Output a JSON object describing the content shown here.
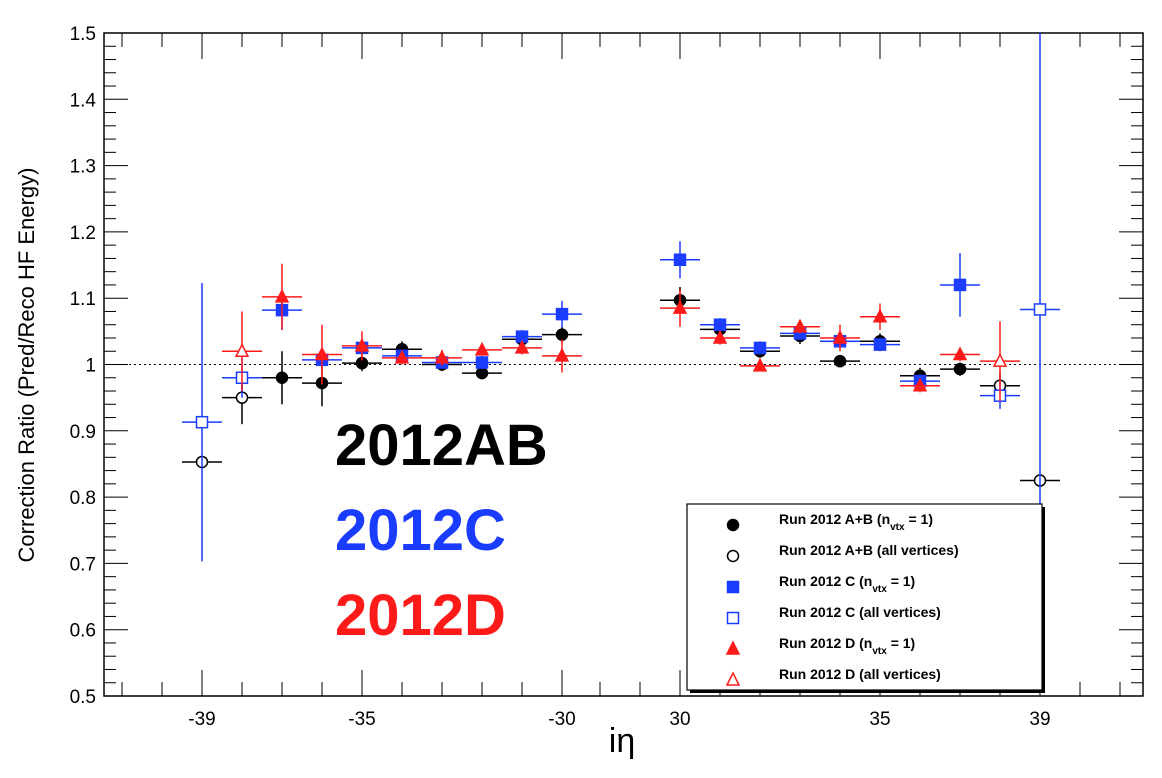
{
  "chart_data": {
    "type": "scatter",
    "ylabel": "Correction Ratio (Pred/Reco HF Energy)",
    "xlabel": "iη",
    "ylim": [
      0.5,
      1.5
    ],
    "yticks": [
      "0.5",
      "0.6",
      "0.7",
      "0.8",
      "0.9",
      "1",
      "1.1",
      "1.2",
      "1.3",
      "1.4",
      "1.5"
    ],
    "yticks_values": [
      0.5,
      0.6,
      0.7,
      0.8,
      0.9,
      1.0,
      1.1,
      1.2,
      1.3,
      1.4,
      1.5
    ],
    "x_categories": [
      -39,
      -38,
      -37,
      -36,
      -35,
      -34,
      -33,
      -32,
      -31,
      -30,
      30,
      31,
      32,
      33,
      34,
      35,
      36,
      37,
      38,
      39
    ],
    "xticks": [
      {
        "label": "-39",
        "category": -39
      },
      {
        "label": "-35",
        "category": -35
      },
      {
        "label": "-30",
        "category": -30
      },
      {
        "label": "30",
        "category": 30
      },
      {
        "label": "35",
        "category": 35
      },
      {
        "label": "39",
        "category": 39
      }
    ],
    "reference_line": 1.0,
    "era_labels": [
      {
        "text": "2012AB",
        "color": "#000000"
      },
      {
        "text": "2012C",
        "color": "#1a3cff"
      },
      {
        "text": "2012D",
        "color": "#ff1a1a"
      }
    ],
    "legend_position": "bottom-right",
    "series": [
      {
        "name": "Run 2012 A+B (n_vtx = 1)",
        "legend": {
          "main": "Run 2012 A+B (n",
          "sub": "vtx",
          "rest": " = 1)"
        },
        "color": "#000000",
        "marker": "circle",
        "filled": true,
        "x": [
          -37,
          -36,
          -35,
          -34,
          -33,
          -32,
          -31,
          -30,
          30,
          31,
          32,
          33,
          34,
          35,
          36,
          37
        ],
        "y": [
          0.98,
          0.972,
          1.002,
          1.023,
          1.0,
          0.987,
          1.038,
          1.045,
          1.097,
          1.053,
          1.02,
          1.043,
          1.005,
          1.035,
          0.983,
          0.993
        ],
        "yerr": [
          0.04,
          0.035,
          0.012,
          0.012,
          0.01,
          0.008,
          0.01,
          0.012,
          0.02,
          0.012,
          0.01,
          0.012,
          0.008,
          0.012,
          0.012,
          0.01
        ]
      },
      {
        "name": "Run 2012 A+B (all vertices)",
        "legend": {
          "main": "Run 2012 A+B (all vertices)",
          "sub": "",
          "rest": ""
        },
        "color": "#000000",
        "marker": "circle",
        "filled": false,
        "x": [
          -39,
          -38,
          38,
          39
        ],
        "y": [
          0.853,
          0.95,
          0.968,
          0.825
        ],
        "yerr": [
          0.0,
          0.04,
          0.02,
          0.0
        ]
      },
      {
        "name": "Run 2012 C (n_vtx = 1)",
        "legend": {
          "main": "Run 2012 C (n",
          "sub": "vtx",
          "rest": " = 1)"
        },
        "color": "#1a3cff",
        "marker": "square",
        "filled": true,
        "x": [
          -37,
          -36,
          -35,
          -34,
          -33,
          -32,
          -31,
          -30,
          30,
          31,
          32,
          33,
          34,
          35,
          36,
          37
        ],
        "y": [
          1.082,
          1.007,
          1.025,
          1.013,
          1.003,
          1.003,
          1.042,
          1.076,
          1.158,
          1.06,
          1.025,
          1.047,
          1.035,
          1.03,
          0.975,
          1.12
        ],
        "yerr": [
          0.03,
          0.012,
          0.01,
          0.008,
          0.007,
          0.01,
          0.01,
          0.02,
          0.028,
          0.01,
          0.01,
          0.01,
          0.01,
          0.01,
          0.01,
          0.048
        ]
      },
      {
        "name": "Run 2012 C (all vertices)",
        "legend": {
          "main": "Run 2012 C (all vertices)",
          "sub": "",
          "rest": ""
        },
        "color": "#1a3cff",
        "marker": "square",
        "filled": false,
        "x": [
          -39,
          -38,
          38,
          39
        ],
        "y": [
          0.913,
          0.98,
          0.953,
          1.083
        ],
        "yerr": [
          0.21,
          0.03,
          0.02,
          0.42
        ]
      },
      {
        "name": "Run 2012 D (n_vtx = 1)",
        "legend": {
          "main": "Run 2012 D (n",
          "sub": "vtx",
          "rest": " = 1)"
        },
        "color": "#ff1a1a",
        "marker": "triangle",
        "filled": true,
        "x": [
          -37,
          -36,
          -35,
          -34,
          -33,
          -32,
          -31,
          -30,
          30,
          31,
          32,
          33,
          34,
          35,
          36,
          37
        ],
        "y": [
          1.102,
          1.015,
          1.028,
          1.01,
          1.01,
          1.022,
          1.025,
          1.013,
          1.085,
          1.04,
          0.998,
          1.057,
          1.04,
          1.072,
          0.968,
          1.015
        ],
        "yerr": [
          0.05,
          0.045,
          0.022,
          0.01,
          0.012,
          0.008,
          0.01,
          0.025,
          0.028,
          0.01,
          0.008,
          0.01,
          0.02,
          0.02,
          0.01,
          0.01
        ]
      },
      {
        "name": "Run 2012 D (all vertices)",
        "legend": {
          "main": "Run 2012 D (all vertices)",
          "sub": "",
          "rest": ""
        },
        "color": "#ff1a1a",
        "marker": "triangle",
        "filled": false,
        "x": [
          -38,
          38
        ],
        "y": [
          1.02,
          1.005
        ],
        "yerr": [
          0.06,
          0.06
        ]
      }
    ]
  }
}
